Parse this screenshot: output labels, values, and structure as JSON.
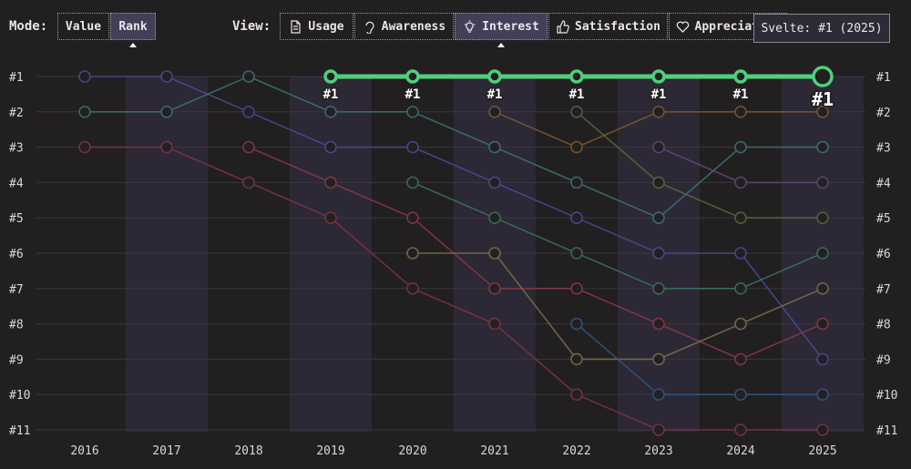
{
  "controls": {
    "mode_label": "Mode:",
    "mode_options": [
      "Value",
      "Rank"
    ],
    "mode_selected": 1,
    "view_label": "View:",
    "view_options": [
      "Usage",
      "Awareness",
      "Interest",
      "Satisfaction",
      "Appreciation"
    ],
    "view_selected": 2
  },
  "chart_data": {
    "type": "bump",
    "tooltip": "Svelte: #1 (2025)",
    "categories": [
      "2016",
      "2017",
      "2018",
      "2019",
      "2020",
      "2021",
      "2022",
      "2023",
      "2024",
      "2025"
    ],
    "ylim": [
      11,
      1
    ],
    "yticks": [
      {
        "value": 1,
        "label": "#1"
      },
      {
        "value": 2,
        "label": "#2"
      },
      {
        "value": 3,
        "label": "#3"
      },
      {
        "value": 4,
        "label": "#4"
      },
      {
        "value": 5,
        "label": "#5"
      },
      {
        "value": 6,
        "label": "#6"
      },
      {
        "value": 7,
        "label": "#7"
      },
      {
        "value": 8,
        "label": "#8"
      },
      {
        "value": 9,
        "label": "#9"
      },
      {
        "value": 10,
        "label": "#10"
      },
      {
        "value": 11,
        "label": "#11"
      }
    ],
    "grid": true,
    "series": [
      {
        "color": "#4b4b98",
        "values": [
          1,
          1,
          2,
          3,
          3,
          4,
          5,
          6,
          6,
          9
        ]
      },
      {
        "color": "#3b7575",
        "values": [
          2,
          2,
          1,
          2,
          2,
          3,
          4,
          5,
          3,
          3
        ]
      },
      {
        "color": "#8a3848",
        "values": [
          null,
          null,
          3,
          4,
          5,
          7,
          7,
          8,
          9,
          8
        ]
      },
      {
        "color": "#7e3446",
        "values": [
          3,
          3,
          4,
          5,
          7,
          8,
          10,
          11,
          11,
          11
        ]
      },
      {
        "color": "#3a745e",
        "values": [
          null,
          null,
          null,
          null,
          4,
          5,
          6,
          7,
          7,
          6
        ]
      },
      {
        "color": "#77744a",
        "values": [
          null,
          null,
          null,
          null,
          6,
          6,
          9,
          9,
          8,
          7
        ]
      },
      {
        "color": "#7e5a32",
        "values": [
          null,
          null,
          null,
          null,
          null,
          2,
          3,
          2,
          2,
          2
        ]
      },
      {
        "color": "#566a3c",
        "values": [
          null,
          null,
          null,
          null,
          null,
          null,
          2,
          4,
          5,
          5
        ]
      },
      {
        "color": "#2e5886",
        "values": [
          null,
          null,
          null,
          null,
          null,
          null,
          8,
          10,
          10,
          10
        ]
      },
      {
        "color": "#634878",
        "values": [
          null,
          null,
          null,
          null,
          null,
          null,
          null,
          3,
          4,
          4
        ]
      },
      {
        "name": "Svelte",
        "color": "#4fcf7c",
        "highlight": true,
        "values": [
          null,
          null,
          null,
          1,
          1,
          1,
          1,
          1,
          1,
          1
        ],
        "value_labels": [
          null,
          null,
          null,
          "#1",
          "#1",
          "#1",
          "#1",
          "#1",
          "#1",
          "#1"
        ]
      }
    ]
  }
}
